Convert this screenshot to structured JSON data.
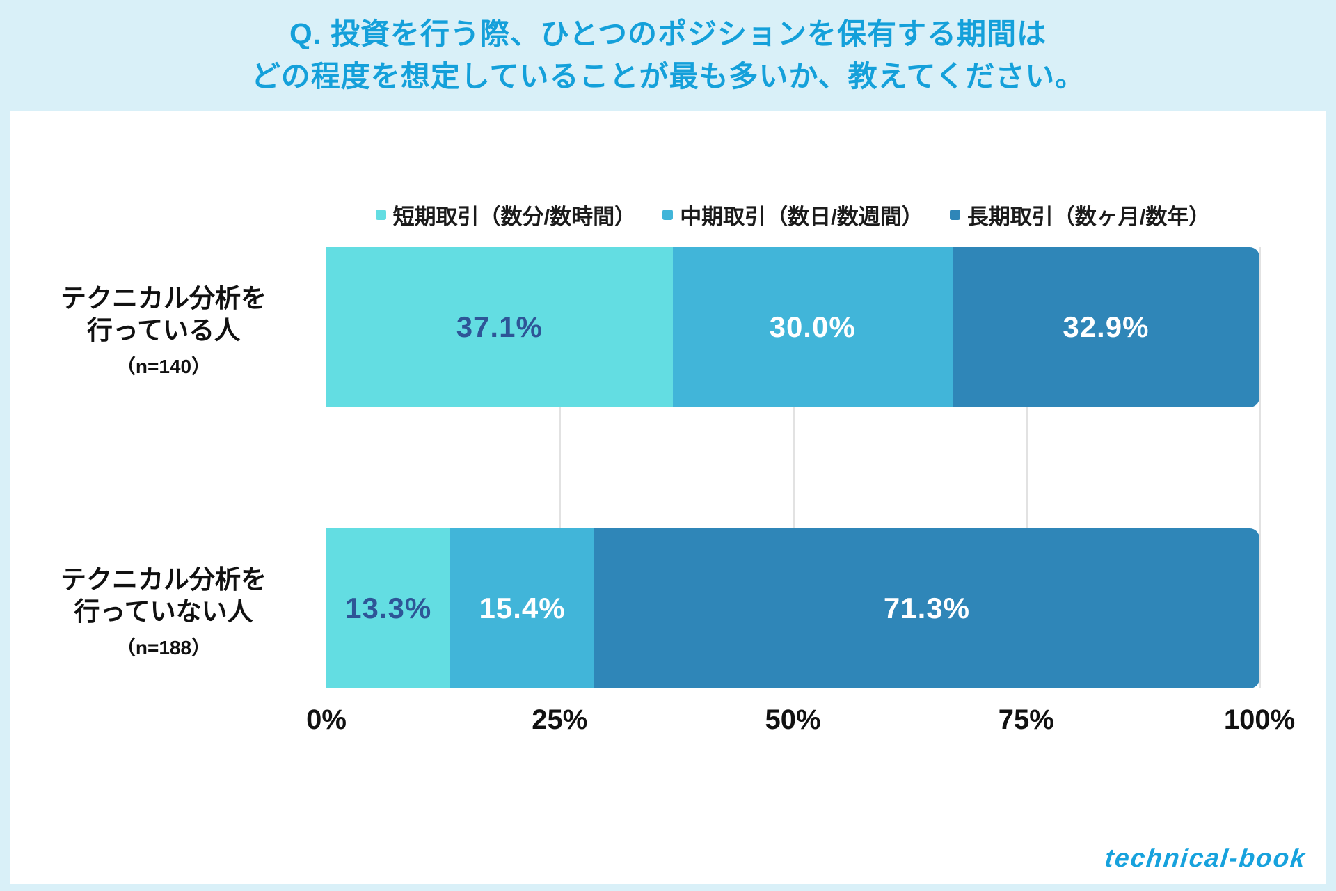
{
  "title": {
    "line1": "Q. 投資を行う際、ひとつのポジションを保有する期間は",
    "line2": "どの程度を想定していることが最も多いか、教えてください。"
  },
  "chart_data": {
    "type": "bar",
    "orientation": "horizontal",
    "stacked": true,
    "legend_position": "top",
    "grid": "vertical",
    "xlim": [
      0,
      100
    ],
    "x_ticks": [
      "0%",
      "25%",
      "50%",
      "75%",
      "100%"
    ],
    "categories": [
      "テクニカル分析を行っている人",
      "テクニカル分析を行っていない人"
    ],
    "category_labels": [
      {
        "line1": "テクニカル分析を",
        "line2": "行っている人",
        "n": "（n=140）"
      },
      {
        "line1": "テクニカル分析を",
        "line2": "行っていない人",
        "n": "（n=188）"
      }
    ],
    "series": [
      {
        "name": "短期取引（数分/数時間）",
        "color": "#63dde2",
        "label_color": "#2e5597",
        "values": [
          37.1,
          13.3
        ]
      },
      {
        "name": "中期取引（数日/数週間）",
        "color": "#41b5d9",
        "label_color": "#ffffff",
        "values": [
          30.0,
          15.4
        ]
      },
      {
        "name": "長期取引（数ヶ月/数年）",
        "color": "#2f86b8",
        "label_color": "#ffffff",
        "values": [
          32.9,
          71.3
        ]
      }
    ],
    "value_labels": [
      [
        "37.1%",
        "30.0%",
        "32.9%"
      ],
      [
        "13.3%",
        "15.4%",
        "71.3%"
      ]
    ]
  },
  "footer": {
    "logo": "technical-book"
  },
  "colors": {
    "background": "#d9f0f8",
    "panel": "#ffffff",
    "title_text": "#14a0da",
    "gridline": "#e2e2e2"
  }
}
